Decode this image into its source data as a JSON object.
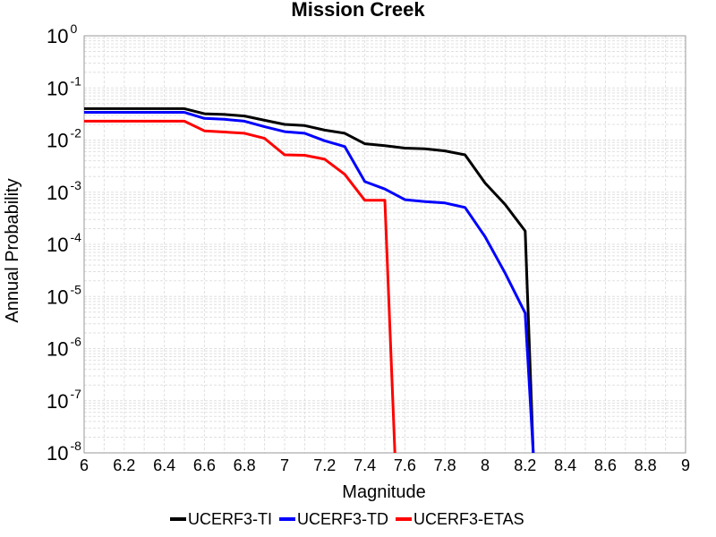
{
  "chart_data": {
    "type": "line",
    "title": "Mission Creek",
    "xlabel": "Magnitude",
    "ylabel": "Annual Probability",
    "xlim": [
      6,
      9
    ],
    "ylim": [
      1e-08,
      1
    ],
    "y_scale": "log",
    "grid": true,
    "legend_position": "bottom",
    "x_ticks": [
      "6",
      "6.2",
      "6.4",
      "6.6",
      "6.8",
      "7",
      "7.2",
      "7.4",
      "7.6",
      "7.8",
      "8",
      "8.2",
      "8.4",
      "8.6",
      "8.8",
      "9"
    ],
    "y_ticks": [
      {
        "base": "10",
        "exp": "-8",
        "value": 1e-08
      },
      {
        "base": "10",
        "exp": "-7",
        "value": 1e-07
      },
      {
        "base": "10",
        "exp": "-6",
        "value": 1e-06
      },
      {
        "base": "10",
        "exp": "-5",
        "value": 1e-05
      },
      {
        "base": "10",
        "exp": "-4",
        "value": 0.0001
      },
      {
        "base": "10",
        "exp": "-3",
        "value": 0.001
      },
      {
        "base": "10",
        "exp": "-2",
        "value": 0.01
      },
      {
        "base": "10",
        "exp": "-1",
        "value": 0.1
      },
      {
        "base": "10",
        "exp": "0",
        "value": 1
      }
    ],
    "series": [
      {
        "name": "UCERF3-TI",
        "color": "#000000",
        "points": [
          [
            6.0,
            0.04
          ],
          [
            6.5,
            0.04
          ],
          [
            6.6,
            0.032
          ],
          [
            6.7,
            0.031
          ],
          [
            6.8,
            0.029
          ],
          [
            6.9,
            0.024
          ],
          [
            7.0,
            0.02
          ],
          [
            7.1,
            0.019
          ],
          [
            7.2,
            0.0155
          ],
          [
            7.3,
            0.0135
          ],
          [
            7.4,
            0.0085
          ],
          [
            7.5,
            0.0078
          ],
          [
            7.6,
            0.007
          ],
          [
            7.7,
            0.0068
          ],
          [
            7.8,
            0.0062
          ],
          [
            7.9,
            0.0052
          ],
          [
            8.0,
            0.0015
          ],
          [
            8.1,
            0.00058
          ],
          [
            8.2,
            0.00018
          ],
          [
            8.24,
            5e-09
          ]
        ]
      },
      {
        "name": "UCERF3-TD",
        "color": "#0000ff",
        "points": [
          [
            6.0,
            0.034
          ],
          [
            6.5,
            0.034
          ],
          [
            6.6,
            0.026
          ],
          [
            6.7,
            0.025
          ],
          [
            6.8,
            0.023
          ],
          [
            6.9,
            0.018
          ],
          [
            7.0,
            0.0145
          ],
          [
            7.1,
            0.0135
          ],
          [
            7.2,
            0.0097
          ],
          [
            7.3,
            0.0075
          ],
          [
            7.4,
            0.0016
          ],
          [
            7.5,
            0.00115
          ],
          [
            7.6,
            0.00072
          ],
          [
            7.7,
            0.00066
          ],
          [
            7.8,
            0.00062
          ],
          [
            7.9,
            0.00051
          ],
          [
            8.0,
            0.00014
          ],
          [
            8.1,
            2.8e-05
          ],
          [
            8.2,
            4.8e-06
          ],
          [
            8.24,
            5e-09
          ]
        ]
      },
      {
        "name": "UCERF3-ETAS",
        "color": "#ff0000",
        "points": [
          [
            6.0,
            0.023
          ],
          [
            6.5,
            0.023
          ],
          [
            6.6,
            0.015
          ],
          [
            6.7,
            0.0143
          ],
          [
            6.8,
            0.0135
          ],
          [
            6.9,
            0.0108
          ],
          [
            7.0,
            0.0052
          ],
          [
            7.1,
            0.0051
          ],
          [
            7.2,
            0.0043
          ],
          [
            7.3,
            0.0022
          ],
          [
            7.4,
            0.0007
          ],
          [
            7.5,
            0.0007
          ],
          [
            7.55,
            5e-09
          ]
        ]
      }
    ]
  }
}
